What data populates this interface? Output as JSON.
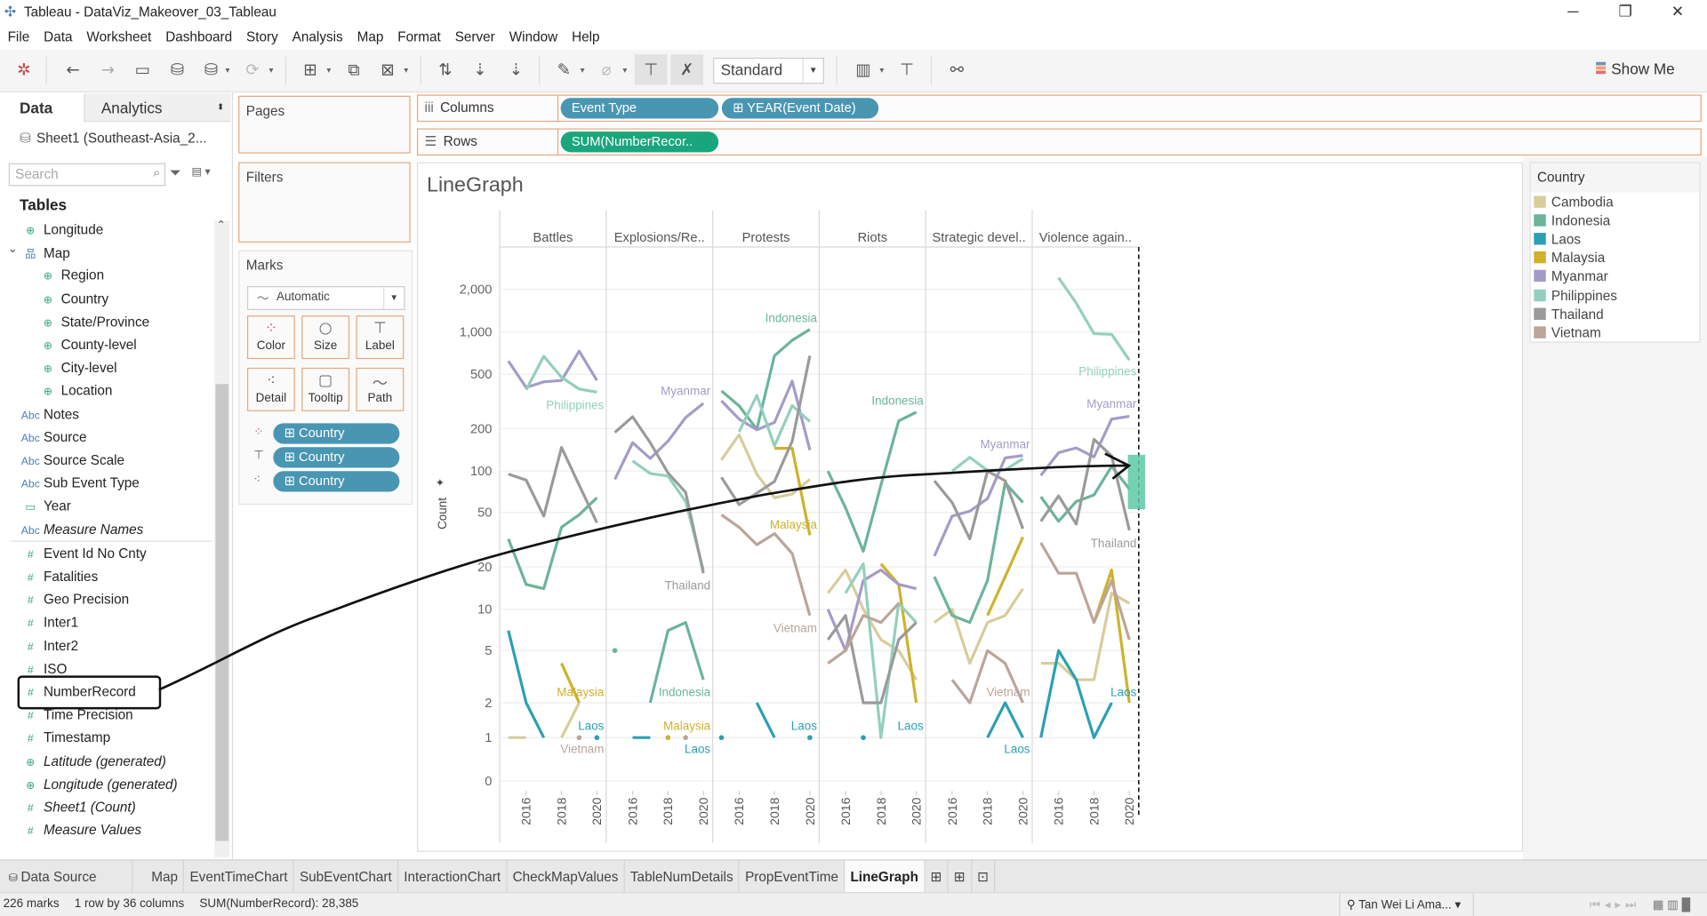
{
  "window": {
    "title": "Tableau - DataViz_Makeover_03_Tableau",
    "controls": [
      "─",
      "❐",
      "✕"
    ]
  },
  "menu": [
    "File",
    "Data",
    "Worksheet",
    "Dashboard",
    "Story",
    "Analysis",
    "Map",
    "Format",
    "Server",
    "Window",
    "Help"
  ],
  "toolbar": {
    "standard_value": "Standard",
    "show_me_label": "Show Me",
    "show_me_colors": [
      "#7b8db3",
      "#8fb0d6",
      "#f0a070",
      "#e86c7a"
    ]
  },
  "left_pane": {
    "tabs": [
      "Data",
      "Analytics"
    ],
    "data_source": "Sheet1 (Southeast-Asia_2...",
    "search_placeholder": "Search",
    "tables_heading": "Tables",
    "fields": [
      {
        "label": "Longitude",
        "icon": "globe",
        "indent": 1
      },
      {
        "label": "Map",
        "icon": "hierarchy",
        "indent": 1,
        "expanded": true
      },
      {
        "label": "Region",
        "icon": "globe",
        "indent": 2
      },
      {
        "label": "Country",
        "icon": "globe",
        "indent": 2
      },
      {
        "label": "State/Province",
        "icon": "globe",
        "indent": 2
      },
      {
        "label": "County-level",
        "icon": "globe",
        "indent": 2
      },
      {
        "label": "City-level",
        "icon": "globe",
        "indent": 2
      },
      {
        "label": "Location",
        "icon": "globe",
        "indent": 2
      },
      {
        "label": "Notes",
        "icon": "abc",
        "indent": 1
      },
      {
        "label": "Source",
        "icon": "abc",
        "indent": 1
      },
      {
        "label": "Source Scale",
        "icon": "abc",
        "indent": 1
      },
      {
        "label": "Sub Event Type",
        "icon": "abc",
        "indent": 1
      },
      {
        "label": "Year",
        "icon": "calendar",
        "indent": 1
      },
      {
        "label": "Measure Names",
        "icon": "abc",
        "indent": 1,
        "italic": true
      },
      {
        "label": "Event Id No Cnty",
        "icon": "number",
        "indent": 1
      },
      {
        "label": "Fatalities",
        "icon": "number",
        "indent": 1
      },
      {
        "label": "Geo Precision",
        "icon": "number",
        "indent": 1
      },
      {
        "label": "Inter1",
        "icon": "number",
        "indent": 1
      },
      {
        "label": "Inter2",
        "icon": "number",
        "indent": 1
      },
      {
        "label": "ISO",
        "icon": "number",
        "indent": 1
      },
      {
        "label": "NumberRecord",
        "icon": "number",
        "indent": 1,
        "highlighted": true
      },
      {
        "label": "Time Precision",
        "icon": "number",
        "indent": 1
      },
      {
        "label": "Timestamp",
        "icon": "number",
        "indent": 1
      },
      {
        "label": "Latitude (generated)",
        "icon": "globe",
        "indent": 1,
        "italic": true
      },
      {
        "label": "Longitude (generated)",
        "icon": "globe",
        "indent": 1,
        "italic": true
      },
      {
        "label": "Sheet1 (Count)",
        "icon": "number",
        "indent": 1,
        "italic": true
      },
      {
        "label": "Measure Values",
        "icon": "number",
        "indent": 1,
        "italic": true
      }
    ]
  },
  "cards": {
    "pages": "Pages",
    "filters": "Filters",
    "marks": "Marks",
    "mark_type": "Automatic",
    "mark_buttons": [
      "Color",
      "Size",
      "Label",
      "Detail",
      "Tooltip",
      "Path"
    ],
    "mark_pills": [
      "Country",
      "Country",
      "Country"
    ]
  },
  "shelves": {
    "columns_label": "Columns",
    "rows_label": "Rows",
    "columns_pills": [
      "Event Type",
      "YEAR(Event Date)"
    ],
    "rows_pills": [
      "SUM(NumberRecor.."
    ]
  },
  "legend": {
    "title": "Country",
    "items": [
      {
        "name": "Cambodia",
        "color": "#d7cd9b"
      },
      {
        "name": "Indonesia",
        "color": "#6bb596"
      },
      {
        "name": "Laos",
        "color": "#2ba0b3"
      },
      {
        "name": "Malaysia",
        "color": "#cfb12c"
      },
      {
        "name": "Myanmar",
        "color": "#a59bc8"
      },
      {
        "name": "Philippines",
        "color": "#93d0bb"
      },
      {
        "name": "Thailand",
        "color": "#999b9b"
      },
      {
        "name": "Vietnam",
        "color": "#bba59a"
      }
    ]
  },
  "chart_data": {
    "type": "line",
    "title": "LineGraph",
    "ylabel": "Count",
    "y_scale": "log",
    "y_ticks": [
      0,
      1,
      2,
      5,
      10,
      20,
      50,
      100,
      200,
      500,
      1000,
      2000
    ],
    "y_tick_labels": [
      "0",
      "1",
      "2",
      "5",
      "10",
      "20",
      "50",
      "100",
      "200",
      "500",
      "1,000",
      "2,000"
    ],
    "x_years": [
      2015,
      2016,
      2017,
      2018,
      2019,
      2020
    ],
    "x_tick_years": [
      2016,
      2018,
      2020
    ],
    "x_tick_labels": [
      "2016",
      "2018",
      "2020"
    ],
    "grid": true,
    "countries": [
      "Cambodia",
      "Indonesia",
      "Laos",
      "Malaysia",
      "Myanmar",
      "Philippines",
      "Thailand",
      "Vietnam"
    ],
    "panels": [
      {
        "header": "Battles",
        "series": [
          [
            1,
            1,
            null,
            1,
            2,
            null
          ],
          [
            32,
            15,
            14,
            39,
            48,
            64
          ],
          [
            7,
            2,
            1,
            null,
            null,
            1
          ],
          [
            null,
            null,
            null,
            4,
            2,
            null
          ],
          [
            620,
            400,
            440,
            450,
            730,
            450
          ],
          [
            null,
            385,
            670,
            475,
            390,
            370
          ],
          [
            95,
            86,
            47,
            147,
            79,
            42
          ],
          [
            null,
            null,
            null,
            null,
            1,
            null
          ]
        ],
        "labels": [
          "Philippines",
          "Malaysia",
          "Laos",
          "Vietnam"
        ]
      },
      {
        "header": "Explosions/Re..",
        "series": [
          [
            null,
            null,
            null,
            null,
            null,
            null
          ],
          [
            5,
            null,
            2,
            7,
            8,
            3
          ],
          [
            null,
            1,
            1,
            null,
            null,
            null
          ],
          [
            null,
            null,
            null,
            1,
            null,
            null
          ],
          [
            87,
            159,
            123,
            163,
            241,
            306
          ],
          [
            null,
            118,
            96,
            92,
            60,
            19
          ],
          [
            188,
            244,
            159,
            97,
            70,
            18
          ],
          [
            null,
            null,
            null,
            null,
            1,
            null
          ]
        ],
        "labels": [
          "Myanmar",
          "Thailand",
          "Indonesia",
          "Malaysia",
          "Laos"
        ]
      },
      {
        "header": "Protests",
        "series": [
          [
            120,
            181,
            95,
            64,
            68,
            87
          ],
          [
            378,
            294,
            198,
            676,
            870,
            1040
          ],
          [
            1,
            null,
            2,
            1,
            null,
            1
          ],
          [
            null,
            null,
            null,
            145,
            145,
            34
          ],
          [
            320,
            235,
            196,
            222,
            445,
            141
          ],
          [
            null,
            190,
            350,
            151,
            295,
            225
          ],
          [
            90,
            57,
            69,
            84,
            163,
            676
          ],
          [
            48,
            39,
            29,
            35,
            25,
            9
          ]
        ],
        "labels": [
          "Indonesia",
          "Malaysia",
          "Vietnam",
          "Laos"
        ]
      },
      {
        "header": "Riots",
        "series": [
          [
            13,
            19,
            10,
            6,
            5,
            3
          ],
          [
            100,
            54,
            26,
            79,
            228,
            264
          ],
          [
            null,
            null,
            1,
            null,
            null,
            null
          ],
          [
            null,
            null,
            null,
            21,
            15,
            2
          ],
          [
            10,
            5,
            16,
            19,
            15,
            14
          ],
          [
            null,
            13,
            21,
            1,
            11,
            8
          ],
          [
            6,
            9,
            2,
            2,
            6,
            8
          ],
          [
            4,
            5,
            9,
            8,
            11,
            null
          ]
        ],
        "labels": [
          "Indonesia",
          "Laos"
        ]
      },
      {
        "header": "Strategic devel..",
        "series": [
          [
            8,
            10,
            4,
            8,
            9,
            14
          ],
          [
            17,
            9,
            8,
            16,
            82,
            59
          ],
          [
            null,
            null,
            null,
            1,
            2,
            1
          ],
          [
            null,
            null,
            null,
            9,
            17,
            33
          ],
          [
            24,
            47,
            51,
            63,
            124,
            129
          ],
          [
            null,
            100,
            125,
            101,
            102,
            122
          ],
          [
            85,
            59,
            32,
            100,
            85,
            38
          ],
          [
            null,
            3,
            2,
            5,
            4,
            2
          ]
        ],
        "labels": [
          "Myanmar",
          "Vietnam",
          "Laos"
        ]
      },
      {
        "header": "Violence again..",
        "series": [
          [
            4,
            4,
            3,
            3,
            13,
            11
          ],
          [
            65,
            43,
            60,
            67,
            108,
            74
          ],
          [
            1,
            5,
            3,
            1,
            2,
            null
          ],
          [
            null,
            null,
            null,
            8,
            19,
            2
          ],
          [
            93,
            135,
            146,
            126,
            235,
            246
          ],
          [
            null,
            2420,
            1600,
            970,
            960,
            630
          ],
          [
            43,
            66,
            41,
            168,
            128,
            37
          ],
          [
            30,
            18,
            18,
            8,
            16,
            6
          ]
        ],
        "labels": [
          "Philippines",
          "Myanmar",
          "Thailand",
          "Laos"
        ]
      }
    ]
  },
  "sheet_tabs": {
    "data_source": "Data Source",
    "tabs": [
      "Map",
      "EventTimeChart",
      "SubEventChart",
      "InteractionChart",
      "CheckMapValues",
      "TableNumDetails",
      "PropEventTime",
      "LineGraph"
    ],
    "active": "LineGraph"
  },
  "status": {
    "marks": "226 marks",
    "dims": "1 row by 36 columns",
    "sum": "SUM(NumberRecord): 28,385",
    "user": "Tan Wei Li Ama..."
  }
}
